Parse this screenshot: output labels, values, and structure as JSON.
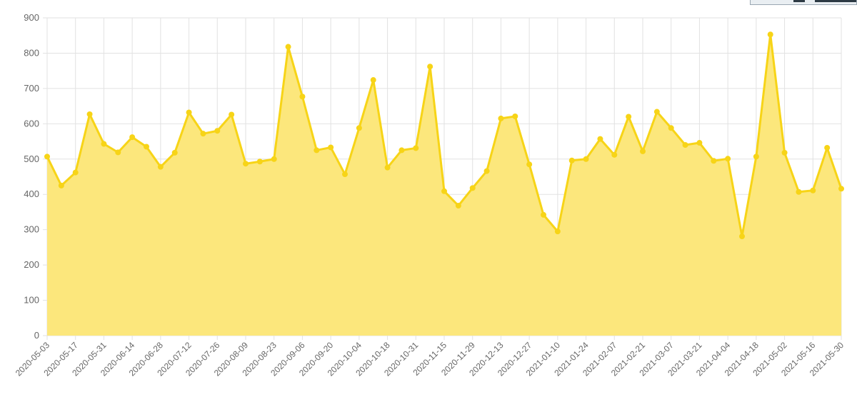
{
  "chart_data": {
    "type": "area",
    "title": "",
    "xlabel": "",
    "ylabel": "",
    "ylim": [
      0,
      900
    ],
    "yticks": [
      0,
      100,
      200,
      300,
      400,
      500,
      600,
      700,
      800,
      900
    ],
    "grid": true,
    "legend": "none",
    "colors": {
      "line": "#f7d417",
      "fill": "#fce77c",
      "grid": "#e2e2e2"
    },
    "x": [
      "2020-05-03",
      "2020-05-10",
      "2020-05-17",
      "2020-05-24",
      "2020-05-31",
      "2020-06-07",
      "2020-06-14",
      "2020-06-21",
      "2020-06-28",
      "2020-07-05",
      "2020-07-12",
      "2020-07-19",
      "2020-07-26",
      "2020-08-02",
      "2020-08-09",
      "2020-08-16",
      "2020-08-23",
      "2020-08-30",
      "2020-09-06",
      "2020-09-13",
      "2020-09-20",
      "2020-09-27",
      "2020-10-04",
      "2020-10-11",
      "2020-10-18",
      "2020-10-25",
      "2020-10-31",
      "2020-11-08",
      "2020-11-15",
      "2020-11-22",
      "2020-11-29",
      "2020-12-06",
      "2020-12-13",
      "2020-12-20",
      "2020-12-27",
      "2021-01-03",
      "2021-01-10",
      "2021-01-17",
      "2021-01-24",
      "2021-01-31",
      "2021-02-07",
      "2021-02-14",
      "2021-02-21",
      "2021-02-28",
      "2021-03-07",
      "2021-03-14",
      "2021-03-21",
      "2021-03-28",
      "2021-04-04",
      "2021-04-11",
      "2021-04-18",
      "2021-04-25",
      "2021-05-02",
      "2021-05-09",
      "2021-05-16",
      "2021-05-23",
      "2021-05-30"
    ],
    "xtick_labels": [
      "2020-05-03",
      "2020-05-17",
      "2020-05-31",
      "2020-06-14",
      "2020-06-28",
      "2020-07-12",
      "2020-07-26",
      "2020-08-09",
      "2020-08-23",
      "2020-09-06",
      "2020-09-20",
      "2020-10-04",
      "2020-10-18",
      "2020-10-31",
      "2020-11-15",
      "2020-11-29",
      "2020-12-13",
      "2020-12-27",
      "2021-01-10",
      "2021-01-24",
      "2021-02-07",
      "2021-02-21",
      "2021-03-07",
      "2021-03-21",
      "2021-04-04",
      "2021-04-18",
      "2021-05-02",
      "2021-05-16",
      "2021-05-30"
    ],
    "series": [
      {
        "values": [
          507,
          425,
          462,
          627,
          543,
          519,
          562,
          535,
          478,
          518,
          632,
          572,
          580,
          626,
          487,
          493,
          500,
          818,
          677,
          525,
          533,
          457,
          588,
          724,
          476,
          525,
          531,
          762,
          409,
          368,
          418,
          466,
          615,
          621,
          485,
          342,
          295,
          496,
          500,
          557,
          512,
          620,
          522,
          634,
          588,
          540,
          546,
          495,
          501,
          281,
          507,
          853,
          518,
          407,
          411,
          532,
          416
        ]
      }
    ]
  }
}
